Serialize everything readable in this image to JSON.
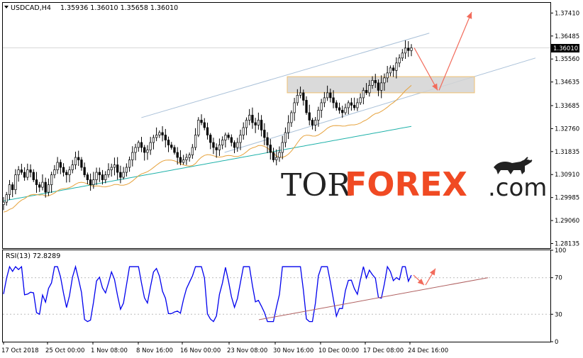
{
  "header": {
    "symbol": "USDCAD,H4",
    "ohlc": "1.35936 1.36010 1.35658 1.36010"
  },
  "watermark": {
    "part1": "TOR",
    "part2": "FOREX",
    "part3": ".com"
  },
  "colors": {
    "candle": "#000000",
    "ma_fast": "#e6a23c",
    "ma_slow": "#20b2aa",
    "channel": "#a9c0d8",
    "zone_fill": "#d3d3d3",
    "zone_border": "#f0c070",
    "arrow": "#f26b5b",
    "rsi": "#0000ee",
    "rsi_trend": "#b06060",
    "brand": "#f04a23"
  },
  "chart_data": [
    {
      "type": "candlestick",
      "name": "USDCAD,H4",
      "y_ticks": [
        "1.37410",
        "1.36485",
        "1.35560",
        "1.34635",
        "1.33685",
        "1.32760",
        "1.31835",
        "1.30910",
        "1.29985",
        "1.29060",
        "1.28135"
      ],
      "ylim": [
        1.2795,
        1.3782
      ],
      "current_price": "1.36010",
      "x_ticks": [
        "17 Oct 2018",
        "25 Oct 00:00",
        "1 Nov 08:00",
        "8 Nov 16:00",
        "16 Nov 00:00",
        "23 Nov 08:00",
        "30 Nov 16:00",
        "10 Dec 00:00",
        "17 Dec 08:00",
        "24 Dec 16:00"
      ],
      "close_series": [
        1.298,
        1.301,
        1.305,
        1.303,
        1.309,
        1.311,
        1.31,
        1.308,
        1.311,
        1.31,
        1.307,
        1.305,
        1.304,
        1.306,
        1.302,
        1.305,
        1.309,
        1.311,
        1.314,
        1.312,
        1.31,
        1.309,
        1.311,
        1.313,
        1.316,
        1.315,
        1.312,
        1.309,
        1.307,
        1.305,
        1.307,
        1.31,
        1.309,
        1.307,
        1.309,
        1.311,
        1.312,
        1.313,
        1.31,
        1.308,
        1.31,
        1.312,
        1.315,
        1.318,
        1.32,
        1.322,
        1.32,
        1.318,
        1.319,
        1.322,
        1.324,
        1.325,
        1.326,
        1.325,
        1.323,
        1.321,
        1.32,
        1.318,
        1.316,
        1.314,
        1.315,
        1.316,
        1.317,
        1.32,
        1.325,
        1.331,
        1.33,
        1.328,
        1.325,
        1.322,
        1.32,
        1.319,
        1.321,
        1.323,
        1.325,
        1.324,
        1.322,
        1.32,
        1.322,
        1.325,
        1.328,
        1.331,
        1.333,
        1.33,
        1.329,
        1.331,
        1.327,
        1.324,
        1.321,
        1.318,
        1.315,
        1.316,
        1.318,
        1.322,
        1.326,
        1.33,
        1.334,
        1.338,
        1.341,
        1.342,
        1.339,
        1.334,
        1.331,
        1.329,
        1.331,
        1.335,
        1.338,
        1.34,
        1.342,
        1.34,
        1.338,
        1.336,
        1.335,
        1.334,
        1.336,
        1.338,
        1.337,
        1.336,
        1.338,
        1.34,
        1.343,
        1.342,
        1.345,
        1.347,
        1.346,
        1.343,
        1.346,
        1.348,
        1.35,
        1.352,
        1.351,
        1.354,
        1.356,
        1.358,
        1.36,
        1.359,
        1.3601
      ],
      "ma_fast": {
        "name": "",
        "start": 1.298,
        "end": 1.345
      },
      "ma_slow": {
        "name": "",
        "start": 1.2985,
        "end": 1.3285
      },
      "channel": {
        "upper": [
          [
            0.325,
            1.332
          ],
          [
            1.0,
            1.366
          ]
        ],
        "lower": [
          [
            0.52,
            1.318
          ],
          [
            1.18,
            1.356
          ]
        ]
      },
      "resistance_zone": [
        1.342,
        1.3485
      ],
      "forecast_path": [
        1.3601,
        1.343,
        1.3745
      ]
    },
    {
      "type": "line",
      "name": "RSI(13)",
      "label": "RSI(13) 72.8289",
      "y_ticks": [
        "100",
        "70",
        "30",
        "0"
      ],
      "ylim": [
        0,
        100
      ],
      "levels": [
        70,
        30
      ],
      "trendline": [
        [
          0.68,
          24
        ],
        [
          1.0,
          70
        ]
      ],
      "forecast_path": [
        72.8,
        62,
        80
      ]
    }
  ]
}
